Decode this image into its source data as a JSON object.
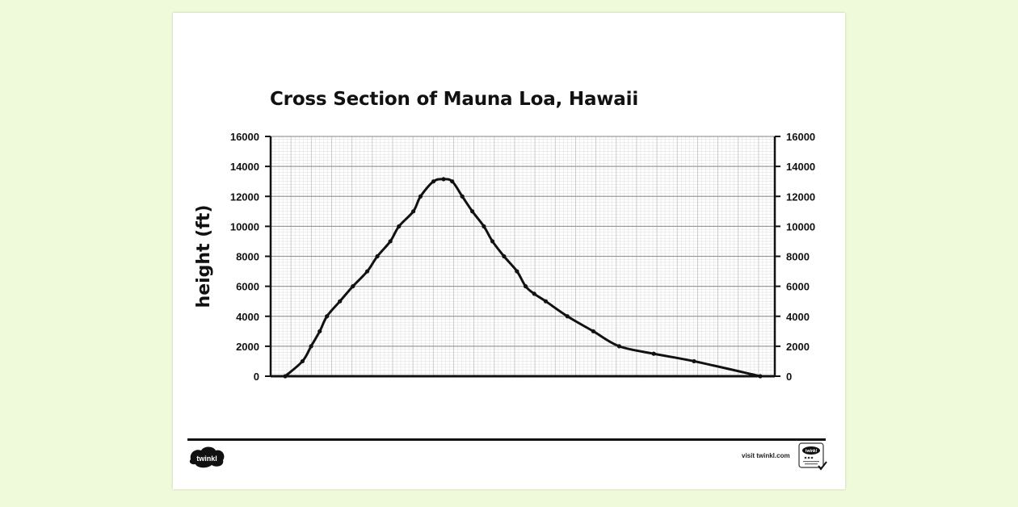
{
  "chart_data": {
    "type": "line",
    "title": "Cross Section of Mauna Loa, Hawaii",
    "ylabel": "height (ft)",
    "xlabel": "",
    "ylim": [
      0,
      16000
    ],
    "yticks": [
      "0",
      "2000",
      "4000",
      "6000",
      "8000",
      "10000",
      "12000",
      "14000",
      "16000"
    ],
    "grid": true,
    "series": [
      {
        "x": [
          0,
          1.2,
          1.8,
          2.4,
          2.9,
          3.8,
          4.7,
          5.7,
          6.4,
          7.3,
          7.9,
          8.9,
          9.4,
          10.3,
          11.0,
          11.6,
          12.3,
          13.0,
          13.8,
          14.4,
          15.2,
          16.1,
          16.7,
          17.3,
          18.1,
          19.6,
          21.4,
          23.2,
          25.6,
          28.4,
          33.0
        ],
        "y": [
          0,
          1000,
          2000,
          3000,
          4000,
          5000,
          6000,
          7000,
          8000,
          9000,
          10000,
          11000,
          12000,
          13000,
          13150,
          13000,
          12000,
          11000,
          10000,
          9000,
          8000,
          7000,
          6000,
          5500,
          5000,
          4000,
          3000,
          2000,
          1500,
          1000,
          0
        ]
      }
    ]
  },
  "footer": {
    "logo_text": "twinkl",
    "visit_text": "visit twinkl.com",
    "badge_text": "twinkl"
  },
  "colors": {
    "background": "#eefad9",
    "line": "#111111",
    "grid_major": "#9a9a9a",
    "grid_minor": "#dedede"
  }
}
